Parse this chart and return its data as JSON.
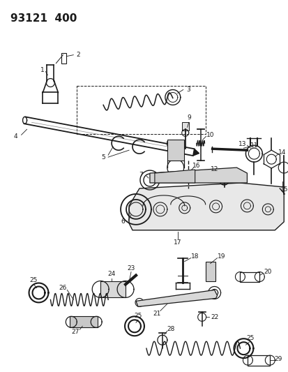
{
  "title": "93121  400",
  "bg_color": "#ffffff",
  "fg_color": "#1a1a1a",
  "title_fontsize": 11,
  "label_fontsize": 6.5,
  "fig_width": 4.14,
  "fig_height": 5.33,
  "dpi": 100
}
